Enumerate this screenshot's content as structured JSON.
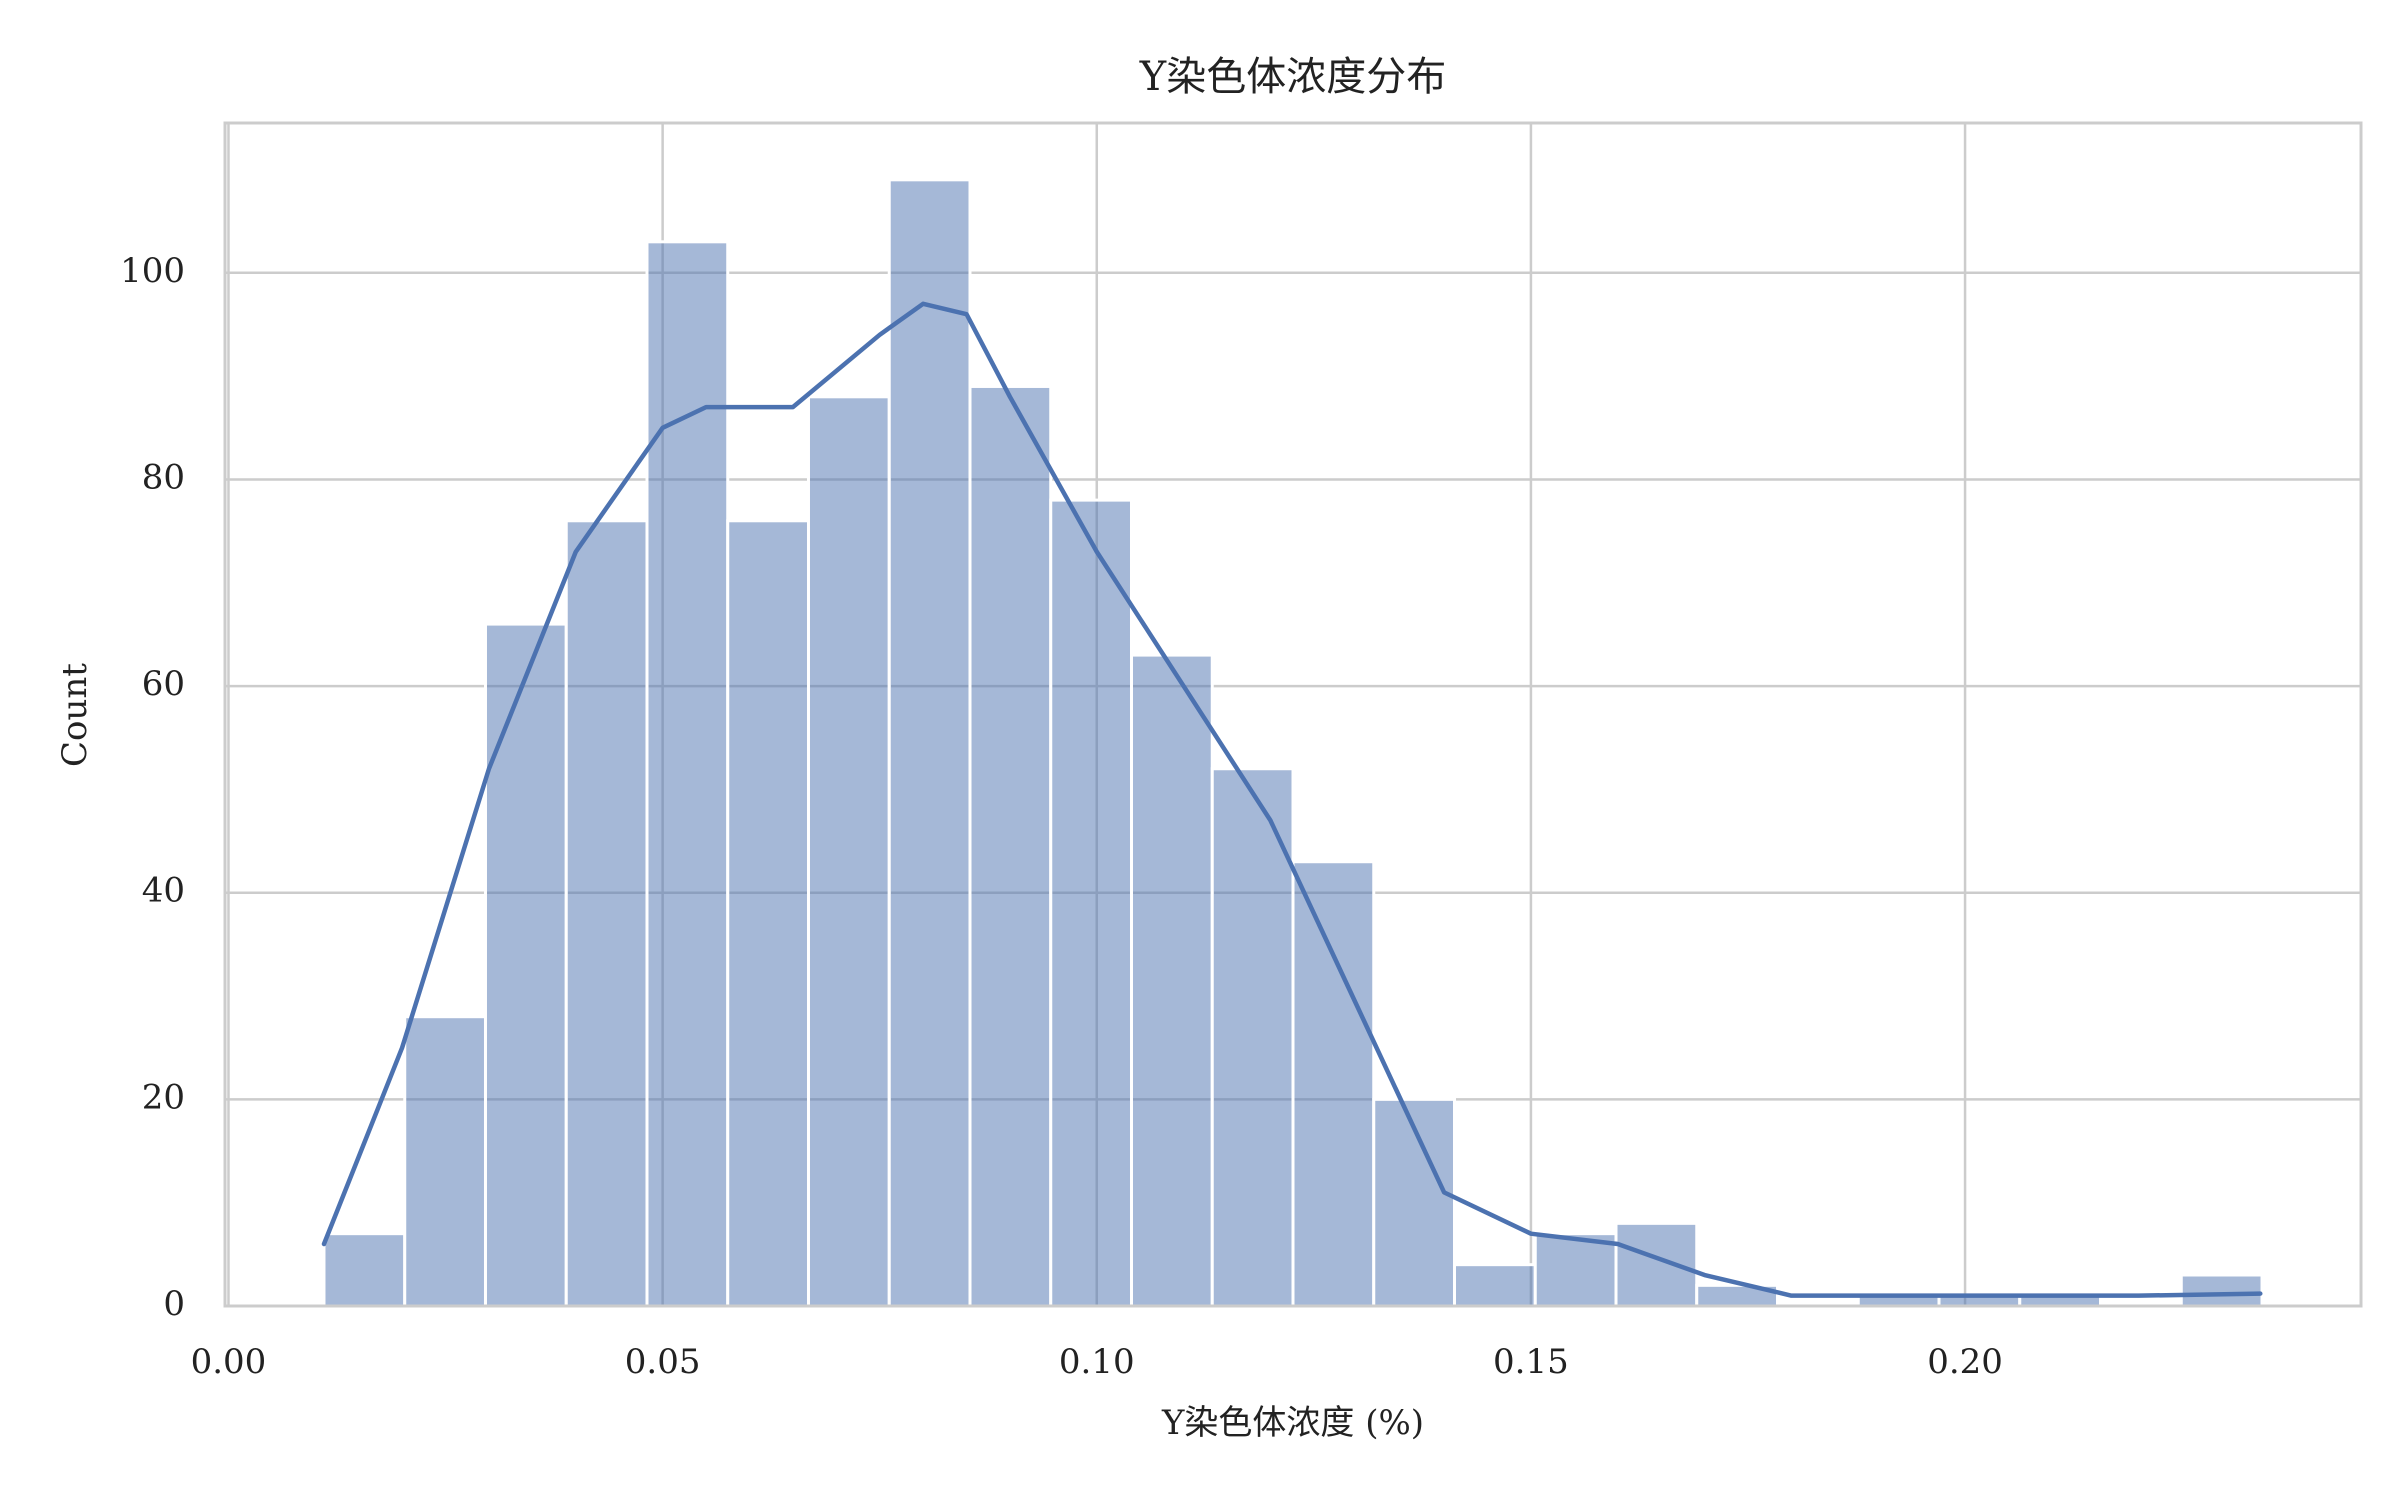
{
  "chart_data": {
    "type": "histogram",
    "title": "Y染色体浓度分布",
    "x_label": "Y染色体浓度 (%)",
    "y_label": "Count",
    "bins": [
      0.011,
      0.0203,
      0.0296,
      0.0389,
      0.0482,
      0.0575,
      0.0668,
      0.0761,
      0.0854,
      0.0947,
      0.104,
      0.1133,
      0.1226,
      0.1319,
      0.1412,
      0.1505,
      0.1598,
      0.1691,
      0.1784,
      0.1877,
      0.197,
      0.2063,
      0.2156,
      0.2249,
      0.2342
    ],
    "counts": [
      7,
      28,
      66,
      76,
      103,
      76,
      88,
      109,
      89,
      78,
      63,
      52,
      43,
      20,
      4,
      7,
      8,
      2,
      0,
      1,
      1,
      1,
      0,
      3
    ],
    "color": "#4c72b0",
    "kde": {
      "x": [
        0.011,
        0.02,
        0.03,
        0.04,
        0.05,
        0.055,
        0.065,
        0.075,
        0.08,
        0.085,
        0.09,
        0.1,
        0.11,
        0.12,
        0.13,
        0.14,
        0.15,
        0.16,
        0.17,
        0.18,
        0.2,
        0.22,
        0.234
      ],
      "y": [
        6,
        25,
        52,
        73,
        85,
        87,
        87,
        94,
        97,
        96,
        88,
        73,
        60,
        47,
        29,
        11,
        7,
        6,
        3,
        1,
        1,
        1,
        1.2
      ],
      "color": "#4c72b0"
    },
    "xlim": [
      -0.0004,
      0.2456
    ],
    "ylim": [
      0,
      114.5
    ],
    "xticks": [
      {
        "value": 0,
        "label": "0.00"
      },
      0.05,
      {
        "value": 0.1,
        "label": "0.10"
      },
      0.15,
      {
        "value": 0.2,
        "label": "0.20"
      }
    ],
    "yticks": [
      0,
      20,
      40,
      60,
      80,
      100
    ],
    "grid": true
  }
}
